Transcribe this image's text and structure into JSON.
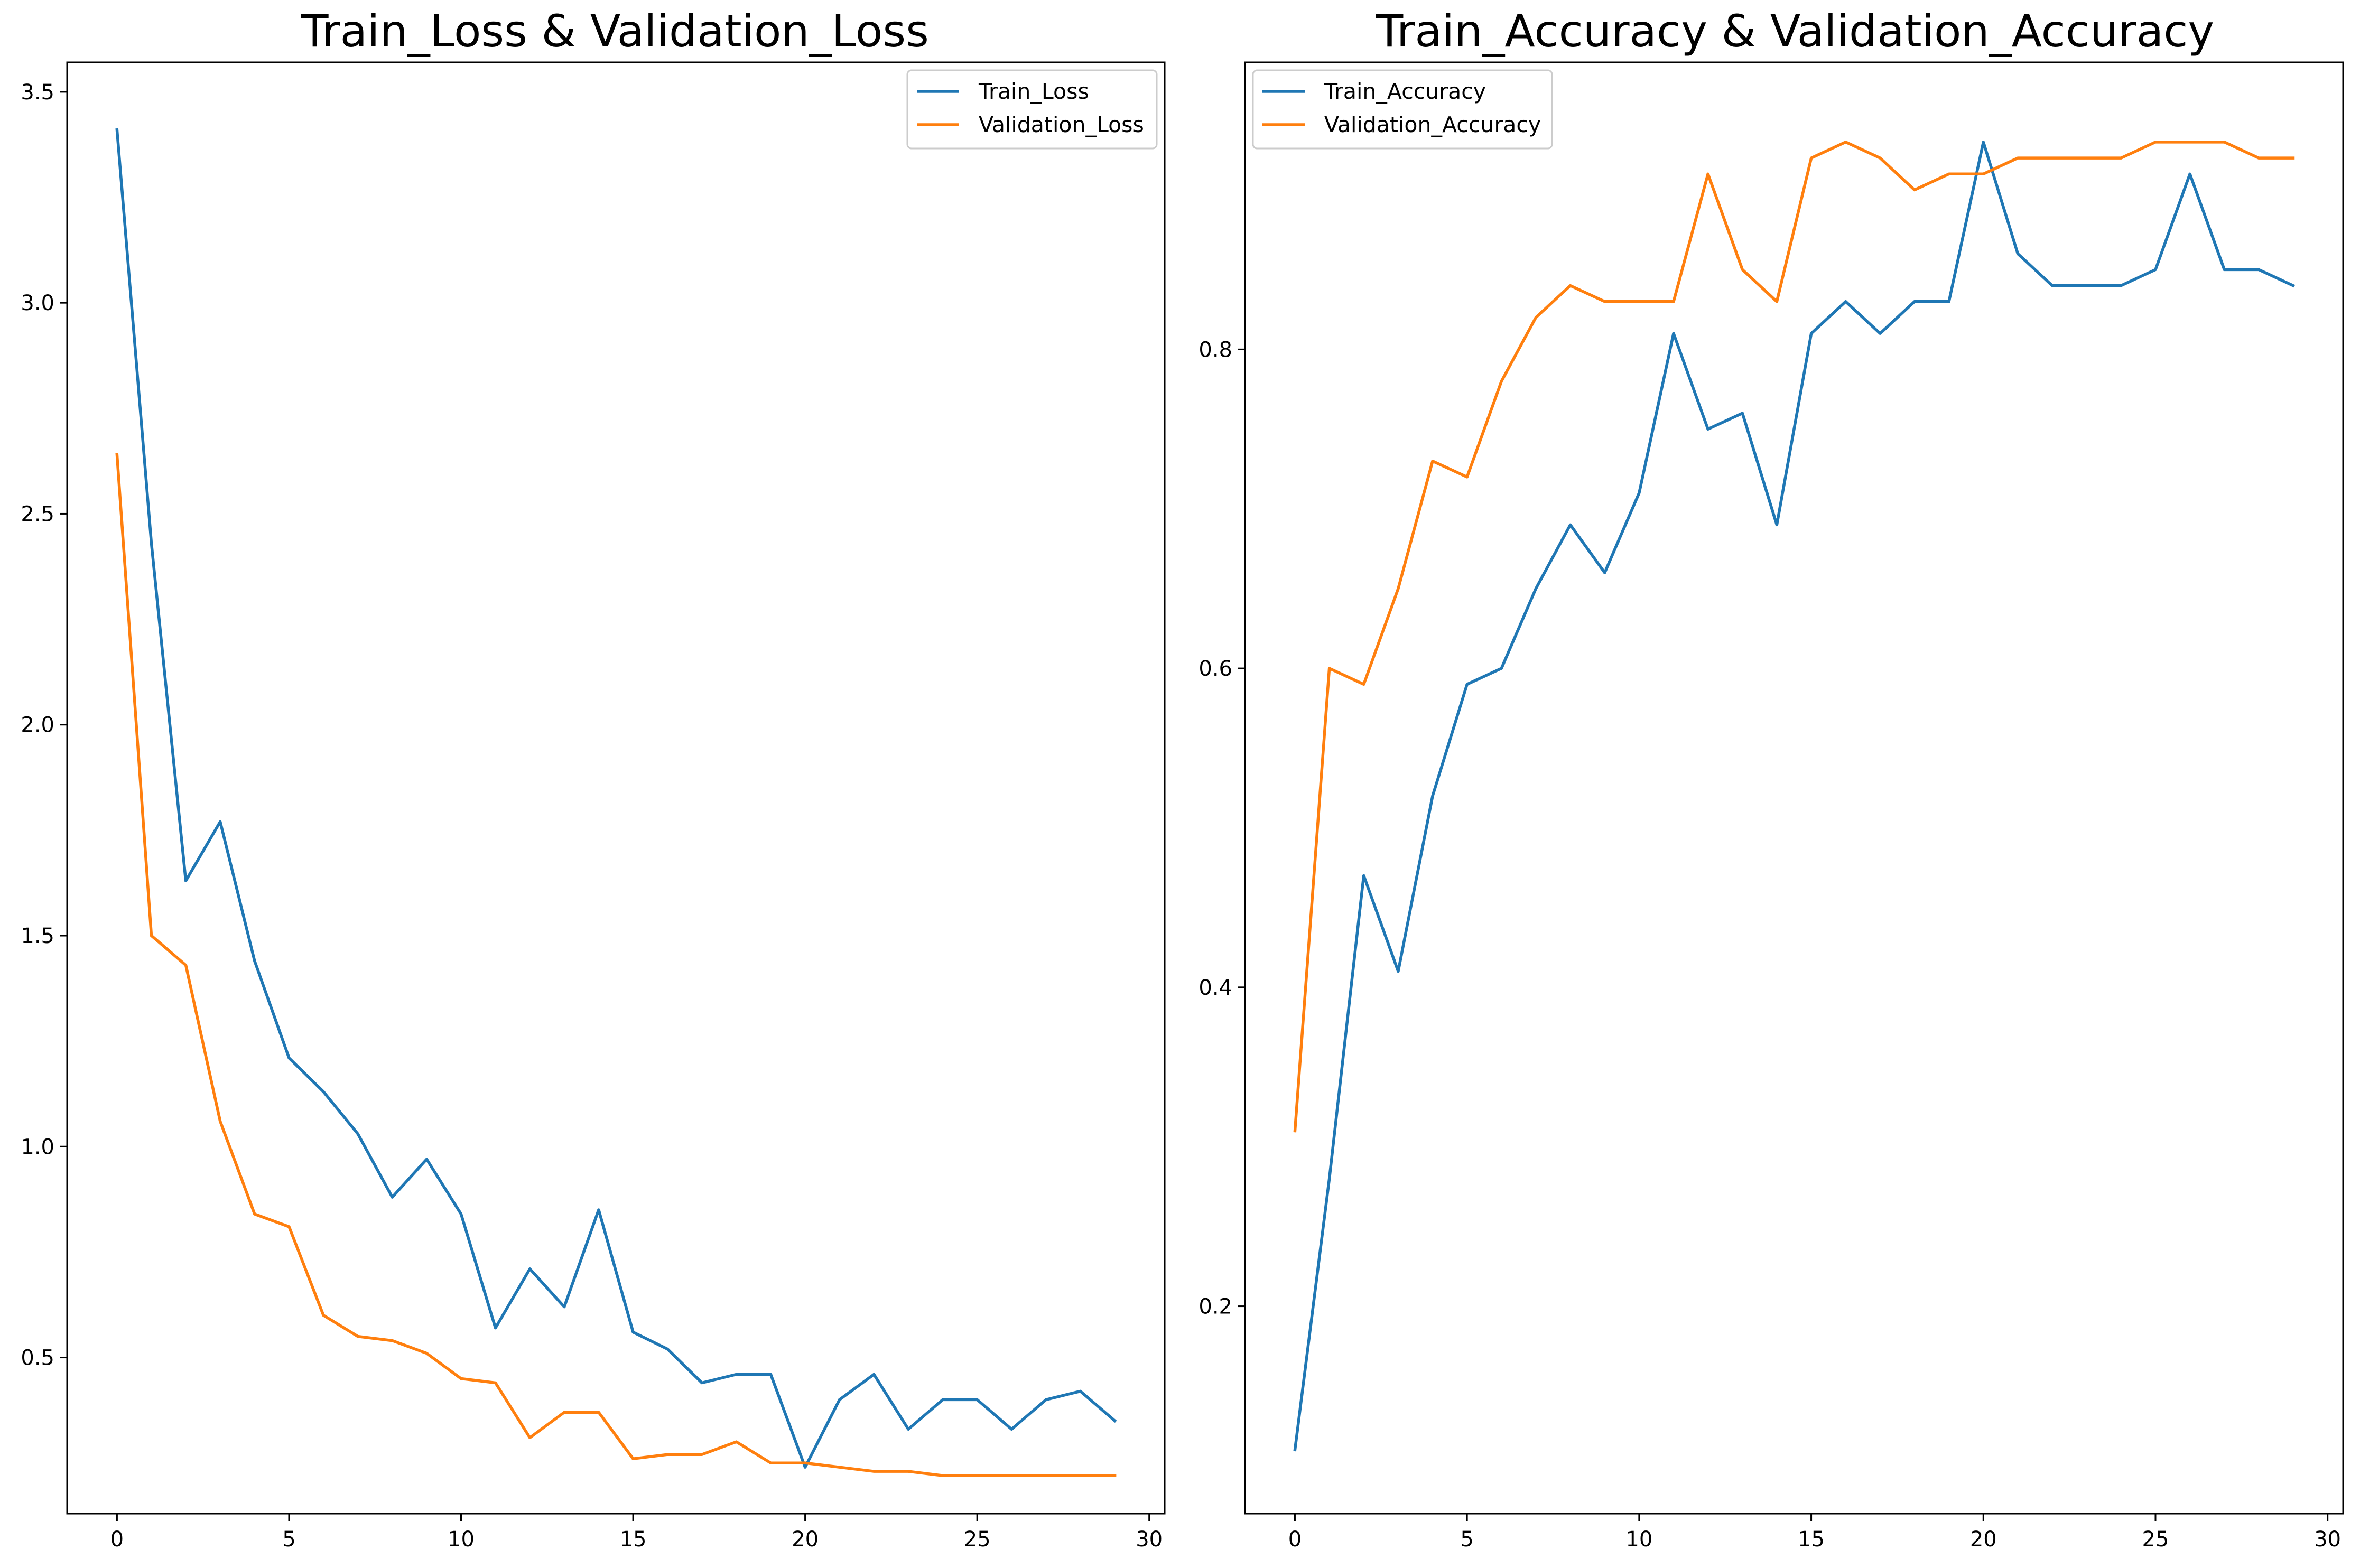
{
  "chart_data": [
    {
      "type": "line",
      "title": "Train_Loss & Validation_Loss",
      "xlabel": "",
      "ylabel": "",
      "xlim": [
        -1.45,
        30.45
      ],
      "ylim": [
        0.13,
        3.57
      ],
      "xticks": [
        0,
        5,
        10,
        15,
        20,
        25,
        30
      ],
      "yticks": [
        0.5,
        1.0,
        1.5,
        2.0,
        2.5,
        3.0,
        3.5
      ],
      "ytick_labels": [
        "0.5",
        "1.0",
        "1.5",
        "2.0",
        "2.5",
        "3.0",
        "3.5"
      ],
      "grid": false,
      "legend_placement": "upper right",
      "x": [
        0,
        1,
        2,
        3,
        4,
        5,
        6,
        7,
        8,
        9,
        10,
        11,
        12,
        13,
        14,
        15,
        16,
        17,
        18,
        19,
        20,
        21,
        22,
        23,
        24,
        25,
        26,
        27,
        28,
        29
      ],
      "series": [
        {
          "name": "Train_Loss",
          "color": "#1f77b4",
          "values": [
            3.41,
            2.43,
            1.63,
            1.77,
            1.44,
            1.21,
            1.13,
            1.03,
            0.88,
            0.97,
            0.84,
            0.57,
            0.71,
            0.62,
            0.85,
            0.56,
            0.52,
            0.44,
            0.46,
            0.46,
            0.24,
            0.4,
            0.46,
            0.33,
            0.4,
            0.4,
            0.33,
            0.4,
            0.42,
            0.35
          ]
        },
        {
          "name": "Validation_Loss",
          "color": "#ff7f0e",
          "values": [
            2.64,
            1.5,
            1.43,
            1.06,
            0.84,
            0.81,
            0.6,
            0.55,
            0.54,
            0.51,
            0.45,
            0.44,
            0.31,
            0.37,
            0.37,
            0.26,
            0.27,
            0.27,
            0.3,
            0.25,
            0.25,
            0.24,
            0.23,
            0.23,
            0.22,
            0.22,
            0.22,
            0.22,
            0.22,
            0.22
          ]
        }
      ]
    },
    {
      "type": "line",
      "title": "Train_Accuracy & Validation_Accuracy",
      "xlabel": "",
      "ylabel": "",
      "xlim": [
        -1.45,
        30.45
      ],
      "ylim": [
        0.07,
        0.98
      ],
      "xticks": [
        0,
        5,
        10,
        15,
        20,
        25,
        30
      ],
      "yticks": [
        0.2,
        0.4,
        0.6,
        0.8
      ],
      "ytick_labels": [
        "0.2",
        "0.4",
        "0.6",
        "0.8"
      ],
      "grid": false,
      "legend_placement": "upper left",
      "x": [
        0,
        1,
        2,
        3,
        4,
        5,
        6,
        7,
        8,
        9,
        10,
        11,
        12,
        13,
        14,
        15,
        16,
        17,
        18,
        19,
        20,
        21,
        22,
        23,
        24,
        25,
        26,
        27,
        28,
        29
      ],
      "series": [
        {
          "name": "Train_Accuracy",
          "color": "#1f77b4",
          "values": [
            0.11,
            0.28,
            0.47,
            0.41,
            0.52,
            0.59,
            0.6,
            0.65,
            0.69,
            0.66,
            0.71,
            0.81,
            0.75,
            0.76,
            0.69,
            0.81,
            0.83,
            0.81,
            0.83,
            0.83,
            0.93,
            0.86,
            0.84,
            0.84,
            0.84,
            0.85,
            0.91,
            0.85,
            0.85,
            0.84
          ]
        },
        {
          "name": "Validation_Accuracy",
          "color": "#ff7f0e",
          "values": [
            0.31,
            0.6,
            0.59,
            0.65,
            0.73,
            0.72,
            0.78,
            0.82,
            0.84,
            0.83,
            0.83,
            0.83,
            0.91,
            0.85,
            0.83,
            0.92,
            0.93,
            0.92,
            0.9,
            0.91,
            0.91,
            0.92,
            0.92,
            0.92,
            0.92,
            0.93,
            0.93,
            0.93,
            0.92,
            0.92
          ]
        }
      ]
    }
  ]
}
